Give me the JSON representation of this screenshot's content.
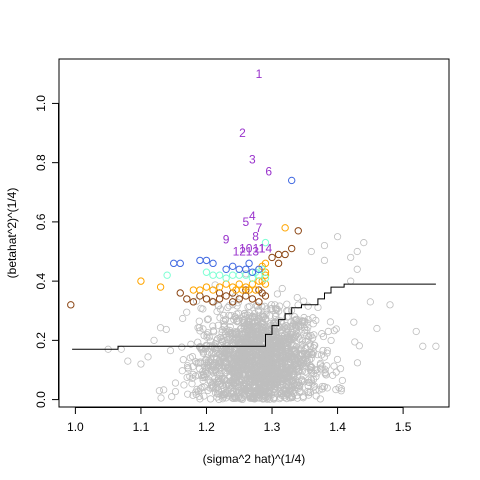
{
  "chart_data": {
    "type": "scatter",
    "title": "",
    "xlabel": "(sigma^2 hat)^(1/4)",
    "ylabel": "(betahat^2)^(1/4)",
    "xlim": [
      0.975,
      1.57
    ],
    "ylim": [
      -0.025,
      1.15
    ],
    "xticks": [
      1.0,
      1.1,
      1.2,
      1.3,
      1.4,
      1.5
    ],
    "xtick_labels": [
      "1.0",
      "1.1",
      "1.2",
      "1.3",
      "1.4",
      "1.5"
    ],
    "yticks": [
      0.0,
      0.2,
      0.4,
      0.6,
      0.8,
      1.0
    ],
    "ytick_labels": [
      "0.0",
      "0.2",
      "0.4",
      "0.6",
      "0.8",
      "1.0"
    ],
    "grid": false,
    "background_cloud": {
      "color": "#bebebe",
      "note": "dense cloud of several thousand open circles",
      "center": [
        1.28,
        0.13
      ],
      "spread": [
        0.045,
        0.09
      ],
      "outliers": [
        [
          1.05,
          0.17
        ],
        [
          1.07,
          0.17
        ],
        [
          1.08,
          0.13
        ],
        [
          1.1,
          0.12
        ],
        [
          1.12,
          0.2
        ],
        [
          1.52,
          0.23
        ],
        [
          1.53,
          0.18
        ],
        [
          1.55,
          0.18
        ],
        [
          1.46,
          0.24
        ],
        [
          1.45,
          0.33
        ],
        [
          1.43,
          0.44
        ],
        [
          1.42,
          0.48
        ],
        [
          1.43,
          0.5
        ],
        [
          1.44,
          0.53
        ],
        [
          1.38,
          0.52
        ],
        [
          1.4,
          0.55
        ],
        [
          1.42,
          0.4
        ],
        [
          1.48,
          0.32
        ],
        [
          1.38,
          0.47
        ],
        [
          1.36,
          0.5
        ]
      ]
    },
    "threshold_line": {
      "color": "#000000",
      "steps": [
        [
          0.995,
          0.17
        ],
        [
          1.065,
          0.17
        ],
        [
          1.065,
          0.18
        ],
        [
          1.16,
          0.18
        ],
        [
          1.16,
          0.18
        ],
        [
          1.29,
          0.18
        ],
        [
          1.29,
          0.22
        ],
        [
          1.3,
          0.22
        ],
        [
          1.3,
          0.25
        ],
        [
          1.31,
          0.25
        ],
        [
          1.31,
          0.27
        ],
        [
          1.32,
          0.27
        ],
        [
          1.32,
          0.29
        ],
        [
          1.33,
          0.29
        ],
        [
          1.33,
          0.31
        ],
        [
          1.345,
          0.31
        ],
        [
          1.345,
          0.32
        ],
        [
          1.37,
          0.32
        ],
        [
          1.37,
          0.34
        ],
        [
          1.38,
          0.34
        ],
        [
          1.38,
          0.36
        ],
        [
          1.39,
          0.36
        ],
        [
          1.39,
          0.38
        ],
        [
          1.41,
          0.38
        ],
        [
          1.41,
          0.39
        ],
        [
          1.55,
          0.39
        ]
      ]
    },
    "series": [
      {
        "color": "#8b4513",
        "points": [
          [
            0.993,
            0.32
          ],
          [
            1.34,
            0.57
          ],
          [
            1.33,
            0.51
          ],
          [
            1.31,
            0.49
          ],
          [
            1.16,
            0.36
          ],
          [
            1.17,
            0.34
          ],
          [
            1.18,
            0.33
          ],
          [
            1.19,
            0.35
          ],
          [
            1.2,
            0.34
          ],
          [
            1.21,
            0.33
          ],
          [
            1.22,
            0.34
          ],
          [
            1.23,
            0.35
          ],
          [
            1.24,
            0.33
          ],
          [
            1.25,
            0.34
          ],
          [
            1.26,
            0.35
          ],
          [
            1.27,
            0.34
          ],
          [
            1.28,
            0.33
          ],
          [
            1.285,
            0.36
          ],
          [
            1.29,
            0.35
          ],
          [
            1.22,
            0.36
          ],
          [
            1.24,
            0.36
          ],
          [
            1.26,
            0.37
          ],
          [
            1.28,
            0.37
          ],
          [
            1.3,
            0.48
          ],
          [
            1.32,
            0.49
          ],
          [
            1.31,
            0.46
          ]
        ]
      },
      {
        "color": "#ffa500",
        "points": [
          [
            1.1,
            0.4
          ],
          [
            1.13,
            0.38
          ],
          [
            1.32,
            0.58
          ],
          [
            1.285,
            0.45
          ],
          [
            1.29,
            0.46
          ],
          [
            1.29,
            0.42
          ],
          [
            1.28,
            0.4
          ],
          [
            1.27,
            0.39
          ],
          [
            1.26,
            0.38
          ],
          [
            1.25,
            0.39
          ],
          [
            1.24,
            0.38
          ],
          [
            1.23,
            0.39
          ],
          [
            1.22,
            0.38
          ],
          [
            1.21,
            0.37
          ],
          [
            1.2,
            0.38
          ],
          [
            1.19,
            0.37
          ],
          [
            1.18,
            0.37
          ],
          [
            1.275,
            0.37
          ],
          [
            1.265,
            0.37
          ],
          [
            1.255,
            0.37
          ],
          [
            1.245,
            0.37
          ],
          [
            1.285,
            0.4
          ],
          [
            1.29,
            0.39
          ],
          [
            1.29,
            0.43
          ]
        ]
      },
      {
        "color": "#7fffd4",
        "points": [
          [
            1.14,
            0.42
          ],
          [
            1.2,
            0.43
          ],
          [
            1.21,
            0.42
          ],
          [
            1.22,
            0.42
          ],
          [
            1.23,
            0.41
          ],
          [
            1.24,
            0.42
          ],
          [
            1.25,
            0.42
          ],
          [
            1.26,
            0.42
          ],
          [
            1.27,
            0.41
          ],
          [
            1.28,
            0.42
          ],
          [
            1.29,
            0.53
          ],
          [
            1.285,
            0.44
          ],
          [
            1.29,
            0.41
          ],
          [
            1.275,
            0.43
          ]
        ]
      },
      {
        "color": "#4169e1",
        "points": [
          [
            1.33,
            0.74
          ],
          [
            1.15,
            0.46
          ],
          [
            1.16,
            0.46
          ],
          [
            1.19,
            0.47
          ],
          [
            1.2,
            0.47
          ],
          [
            1.21,
            0.46
          ],
          [
            1.23,
            0.44
          ],
          [
            1.24,
            0.45
          ],
          [
            1.25,
            0.44
          ],
          [
            1.26,
            0.44
          ],
          [
            1.27,
            0.43
          ],
          [
            1.28,
            0.44
          ],
          [
            1.265,
            0.46
          ]
        ]
      },
      {
        "color": "#9932cc",
        "labels": [
          {
            "text": "1",
            "x": 1.28,
            "y": 1.1
          },
          {
            "text": "2",
            "x": 1.255,
            "y": 0.9
          },
          {
            "text": "3",
            "x": 1.27,
            "y": 0.81
          },
          {
            "text": "4",
            "x": 1.27,
            "y": 0.62
          },
          {
            "text": "5",
            "x": 1.26,
            "y": 0.6
          },
          {
            "text": "6",
            "x": 1.295,
            "y": 0.77
          },
          {
            "text": "7",
            "x": 1.28,
            "y": 0.58
          },
          {
            "text": "8",
            "x": 1.275,
            "y": 0.55
          },
          {
            "text": "9",
            "x": 1.23,
            "y": 0.54
          },
          {
            "text": "10",
            "x": 1.26,
            "y": 0.51
          },
          {
            "text": "11",
            "x": 1.28,
            "y": 0.51
          },
          {
            "text": "12",
            "x": 1.25,
            "y": 0.5
          },
          {
            "text": "13",
            "x": 1.27,
            "y": 0.5
          },
          {
            "text": "14",
            "x": 1.29,
            "y": 0.51
          }
        ]
      }
    ]
  }
}
